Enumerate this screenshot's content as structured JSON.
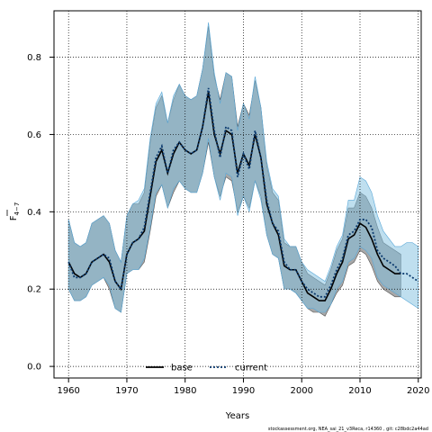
{
  "chart_data": {
    "type": "line",
    "title": "",
    "xlabel": "Years",
    "ylabel": "F4-7",
    "xlim": [
      1957.5,
      2020.5
    ],
    "ylim": [
      -0.03,
      0.92
    ],
    "xticks": [
      1960,
      1970,
      1980,
      1990,
      2000,
      2010,
      2020
    ],
    "yticks": [
      0.0,
      0.2,
      0.4,
      0.6,
      0.8
    ],
    "ytick_labels": [
      "0.0",
      "0.2",
      "0.4",
      "0.6",
      "0.8"
    ],
    "grid": true,
    "legend_position": "bottom-center",
    "x": [
      1960,
      1961,
      1962,
      1963,
      1964,
      1965,
      1966,
      1967,
      1968,
      1969,
      1970,
      1971,
      1972,
      1973,
      1974,
      1975,
      1976,
      1977,
      1978,
      1979,
      1980,
      1981,
      1982,
      1983,
      1984,
      1985,
      1986,
      1987,
      1988,
      1989,
      1990,
      1991,
      1992,
      1993,
      1994,
      1995,
      1996,
      1997,
      1998,
      1999,
      2000,
      2001,
      2002,
      2003,
      2004,
      2005,
      2006,
      2007,
      2008,
      2009,
      2010,
      2011,
      2012,
      2013,
      2014,
      2015,
      2016,
      2017,
      2018,
      2019,
      2020
    ],
    "series": [
      {
        "name": "base",
        "color": "#000000",
        "line_style": "solid",
        "band_color": "#7a7a7a",
        "values": [
          0.27,
          0.24,
          0.23,
          0.24,
          0.27,
          0.28,
          0.29,
          0.27,
          0.22,
          0.2,
          0.29,
          0.32,
          0.33,
          0.35,
          0.44,
          0.53,
          0.56,
          0.5,
          0.55,
          0.58,
          0.56,
          0.55,
          0.56,
          0.62,
          0.71,
          0.6,
          0.55,
          0.61,
          0.6,
          0.5,
          0.55,
          0.52,
          0.6,
          0.54,
          0.42,
          0.37,
          0.34,
          0.26,
          0.25,
          0.25,
          0.22,
          0.19,
          0.18,
          0.17,
          0.17,
          0.2,
          0.24,
          0.27,
          0.33,
          0.34,
          0.37,
          0.36,
          0.33,
          0.29,
          0.26,
          0.25,
          0.24,
          0.24,
          null,
          null,
          null
        ],
        "lower": [
          0.2,
          0.17,
          0.17,
          0.18,
          0.21,
          0.22,
          0.23,
          0.2,
          0.15,
          0.14,
          0.24,
          0.25,
          0.25,
          0.27,
          0.35,
          0.44,
          0.47,
          0.41,
          0.45,
          0.48,
          0.46,
          0.45,
          0.45,
          0.5,
          0.58,
          0.49,
          0.44,
          0.49,
          0.48,
          0.4,
          0.44,
          0.41,
          0.48,
          0.44,
          0.34,
          0.29,
          0.28,
          0.2,
          0.2,
          0.19,
          0.17,
          0.15,
          0.14,
          0.14,
          0.13,
          0.16,
          0.19,
          0.21,
          0.26,
          0.27,
          0.3,
          0.29,
          0.26,
          0.22,
          0.2,
          0.19,
          0.18,
          0.18,
          null,
          null,
          null
        ],
        "upper": [
          0.38,
          0.32,
          0.31,
          0.32,
          0.37,
          0.38,
          0.39,
          0.37,
          0.3,
          0.27,
          0.39,
          0.42,
          0.42,
          0.45,
          0.58,
          0.67,
          0.7,
          0.63,
          0.69,
          0.73,
          0.7,
          0.69,
          0.7,
          0.77,
          0.88,
          0.75,
          0.69,
          0.76,
          0.75,
          0.62,
          0.68,
          0.65,
          0.74,
          0.67,
          0.52,
          0.45,
          0.43,
          0.32,
          0.31,
          0.31,
          0.27,
          0.24,
          0.23,
          0.22,
          0.21,
          0.25,
          0.3,
          0.33,
          0.41,
          0.41,
          0.45,
          0.44,
          0.41,
          0.36,
          0.32,
          0.31,
          0.3,
          0.29,
          null,
          null,
          null
        ]
      },
      {
        "name": "current",
        "color": "#0b3a6e",
        "line_style": "dotted",
        "band_color": "#7fbfe0",
        "values": [
          0.27,
          0.23,
          0.23,
          0.24,
          0.27,
          0.28,
          0.29,
          0.28,
          0.22,
          0.2,
          0.29,
          0.32,
          0.33,
          0.36,
          0.45,
          0.54,
          0.57,
          0.5,
          0.56,
          0.58,
          0.56,
          0.55,
          0.56,
          0.62,
          0.72,
          0.61,
          0.54,
          0.62,
          0.61,
          0.49,
          0.55,
          0.51,
          0.61,
          0.54,
          0.43,
          0.37,
          0.35,
          0.27,
          0.25,
          0.25,
          0.22,
          0.2,
          0.19,
          0.18,
          0.18,
          0.21,
          0.25,
          0.28,
          0.34,
          0.35,
          0.38,
          0.38,
          0.36,
          0.3,
          0.28,
          0.27,
          0.26,
          0.24,
          0.24,
          0.23,
          0.22
        ],
        "lower": [
          0.2,
          0.17,
          0.17,
          0.18,
          0.21,
          0.22,
          0.23,
          0.21,
          0.15,
          0.14,
          0.24,
          0.25,
          0.25,
          0.28,
          0.36,
          0.45,
          0.47,
          0.41,
          0.46,
          0.48,
          0.46,
          0.45,
          0.45,
          0.5,
          0.59,
          0.49,
          0.43,
          0.5,
          0.49,
          0.39,
          0.44,
          0.4,
          0.48,
          0.43,
          0.34,
          0.29,
          0.28,
          0.2,
          0.2,
          0.19,
          0.17,
          0.15,
          0.15,
          0.14,
          0.14,
          0.16,
          0.2,
          0.22,
          0.27,
          0.28,
          0.31,
          0.3,
          0.28,
          0.23,
          0.21,
          0.2,
          0.19,
          0.18,
          0.17,
          0.16,
          0.15
        ],
        "upper": [
          0.38,
          0.32,
          0.31,
          0.32,
          0.37,
          0.38,
          0.39,
          0.37,
          0.3,
          0.27,
          0.39,
          0.42,
          0.43,
          0.46,
          0.59,
          0.68,
          0.71,
          0.63,
          0.7,
          0.73,
          0.7,
          0.69,
          0.7,
          0.77,
          0.89,
          0.76,
          0.68,
          0.76,
          0.75,
          0.61,
          0.68,
          0.64,
          0.75,
          0.67,
          0.53,
          0.46,
          0.44,
          0.33,
          0.31,
          0.31,
          0.27,
          0.25,
          0.24,
          0.23,
          0.22,
          0.26,
          0.31,
          0.34,
          0.43,
          0.43,
          0.49,
          0.48,
          0.45,
          0.39,
          0.35,
          0.33,
          0.31,
          0.31,
          0.32,
          0.32,
          0.31
        ]
      }
    ]
  },
  "footer": "stockassessment.org, NEA_sai_21_v3Reca, r14360 , git: c28bdc2a44ad"
}
